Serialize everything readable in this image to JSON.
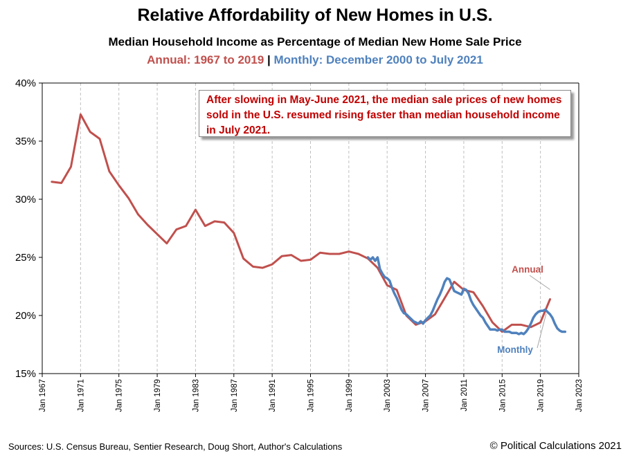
{
  "title": "Relative Affordability of New Homes in U.S.",
  "subtitle": "Median Household  Income as Percentage of Median New Home Sale Price",
  "series_line": {
    "annual": "Annual:  1967 to 2019",
    "separator": " | ",
    "monthly": "Monthly:  December 2000 to July 2021"
  },
  "annotation": "After slowing in May-June 2021, the median sale prices of new homes sold in the U.S. resumed rising faster than median household income in July 2021.",
  "sources": "Sources: U.S. Census Bureau, Sentier Research, Doug Short,  Author's Calculations",
  "copyright": "© Political Calculations 2021",
  "chart_data": {
    "type": "line",
    "title": "Relative Affordability of New Homes in U.S.",
    "ylabel": "",
    "xlabel": "",
    "ylim": [
      15,
      40
    ],
    "xlim": [
      1967,
      2023
    ],
    "y_ticks": [
      "15%",
      "20%",
      "25%",
      "30%",
      "35%",
      "40%"
    ],
    "x_ticks": [
      "Jan 1967",
      "Jan 1971",
      "Jan 1975",
      "Jan 1979",
      "Jan 1983",
      "Jan 1987",
      "Jan 1991",
      "Jan 1995",
      "Jan 1999",
      "Jan 2003",
      "Jan 2007",
      "Jan 2011",
      "Jan 2015",
      "Jan 2019",
      "Jan 2023"
    ],
    "grid": "vertical-dashed",
    "series": [
      {
        "name": "Annual",
        "color": "#c0504d",
        "x": [
          1968,
          1969,
          1970,
          1971,
          1972,
          1973,
          1974,
          1975,
          1976,
          1977,
          1978,
          1979,
          1980,
          1981,
          1982,
          1983,
          1984,
          1985,
          1986,
          1987,
          1988,
          1989,
          1990,
          1991,
          1992,
          1993,
          1994,
          1995,
          1996,
          1997,
          1998,
          1999,
          2000,
          2001,
          2002,
          2003,
          2004,
          2005,
          2006,
          2007,
          2008,
          2009,
          2010,
          2011,
          2012,
          2013,
          2014,
          2015,
          2016,
          2017,
          2018,
          2019,
          2020
        ],
        "values": [
          31.5,
          31.4,
          32.8,
          37.3,
          35.8,
          35.2,
          32.4,
          31.2,
          30.1,
          28.7,
          27.8,
          27.0,
          26.2,
          27.4,
          27.7,
          29.1,
          27.7,
          28.1,
          28.0,
          27.1,
          24.9,
          24.2,
          24.1,
          24.4,
          25.1,
          25.2,
          24.7,
          24.8,
          25.4,
          25.3,
          25.3,
          25.5,
          25.3,
          24.9,
          24.1,
          22.6,
          22.2,
          20.0,
          19.2,
          19.5,
          20.1,
          21.5,
          22.9,
          22.2,
          22.0,
          20.8,
          19.4,
          18.6,
          19.2,
          19.2,
          19.0,
          19.4,
          21.4
        ]
      },
      {
        "name": "Monthly",
        "color": "#4f81bd",
        "x": [
          2001.0,
          2001.25,
          2001.5,
          2001.75,
          2002.0,
          2002.25,
          2002.5,
          2002.75,
          2003.0,
          2003.25,
          2003.5,
          2003.75,
          2004.0,
          2004.25,
          2004.5,
          2004.75,
          2005.0,
          2005.25,
          2005.5,
          2005.75,
          2006.0,
          2006.25,
          2006.5,
          2006.75,
          2007.0,
          2007.25,
          2007.5,
          2007.75,
          2008.0,
          2008.25,
          2008.5,
          2008.75,
          2009.0,
          2009.25,
          2009.5,
          2009.75,
          2010.0,
          2010.25,
          2010.5,
          2010.75,
          2011.0,
          2011.25,
          2011.5,
          2011.75,
          2012.0,
          2012.25,
          2012.5,
          2012.75,
          2013.0,
          2013.25,
          2013.5,
          2013.75,
          2014.0,
          2014.25,
          2014.5,
          2014.75,
          2015.0,
          2015.25,
          2015.5,
          2015.75,
          2016.0,
          2016.25,
          2016.5,
          2016.75,
          2017.0,
          2017.25,
          2017.5,
          2017.75,
          2018.0,
          2018.25,
          2018.5,
          2018.75,
          2019.0,
          2019.25,
          2019.5,
          2019.75,
          2020.0,
          2020.25,
          2020.5,
          2020.75,
          2021.0,
          2021.25,
          2021.58
        ],
        "values": [
          25.0,
          24.8,
          25.0,
          24.7,
          25.0,
          24.0,
          23.6,
          23.3,
          23.2,
          23.0,
          22.4,
          21.9,
          21.5,
          21.0,
          20.5,
          20.2,
          20.1,
          19.9,
          19.7,
          19.5,
          19.4,
          19.3,
          19.5,
          19.3,
          19.6,
          19.8,
          20.0,
          20.4,
          20.9,
          21.4,
          21.8,
          22.3,
          22.9,
          23.2,
          23.1,
          22.6,
          22.1,
          22.0,
          21.9,
          21.8,
          22.3,
          22.2,
          21.9,
          21.3,
          20.9,
          20.6,
          20.3,
          20.0,
          19.8,
          19.4,
          19.1,
          18.8,
          18.8,
          18.8,
          18.7,
          18.8,
          18.8,
          18.6,
          18.6,
          18.6,
          18.5,
          18.5,
          18.5,
          18.4,
          18.5,
          18.4,
          18.6,
          18.9,
          19.3,
          19.8,
          20.1,
          20.3,
          20.4,
          20.4,
          20.5,
          20.3,
          20.1,
          19.8,
          19.3,
          18.9,
          18.7,
          18.6,
          18.6
        ]
      }
    ],
    "annotations": [
      "Annual",
      "Monthly"
    ]
  }
}
